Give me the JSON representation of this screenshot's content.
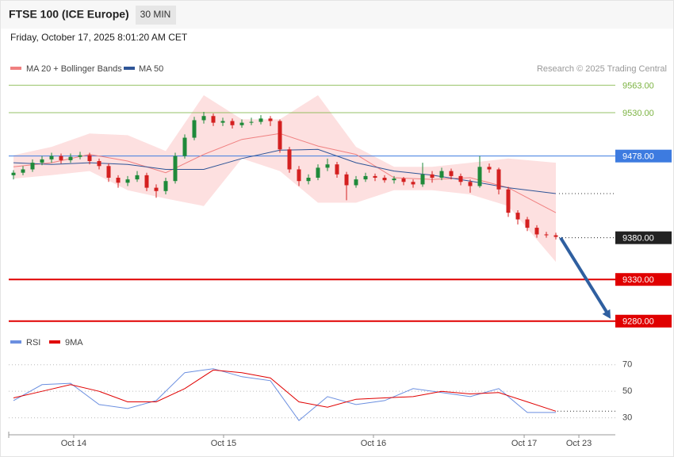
{
  "chart_data": {
    "type": "candlestick",
    "title": "FTSE 100 (ICE Europe)",
    "timeframe": "30 MIN",
    "subtitle": "Friday, October 17, 2025 8:01:20 AM CET",
    "copyright": "Research © 2025 Trading Central",
    "xlim": [
      -0.5,
      63.25
    ],
    "ylim": [
      9275,
      9570
    ],
    "xticks": [
      {
        "value": 6.33,
        "label": "Oct 14"
      },
      {
        "value": 22.08,
        "label": "Oct 15"
      },
      {
        "value": 37.83,
        "label": "Oct 16"
      },
      {
        "value": 53.67,
        "label": "Oct 17"
      },
      {
        "value": 59.42,
        "label": "Oct 23"
      }
    ],
    "up_color": "#1f8a3a",
    "down_color": "#d42020",
    "open": [
      9455,
      9458,
      9462,
      9470,
      9474,
      9478,
      9473,
      9477,
      9479,
      9472,
      9466,
      9452,
      9446,
      9450,
      9455,
      9440,
      9436,
      9448,
      9478,
      9500,
      9521,
      9526,
      9518,
      9520,
      9515,
      9518,
      9519,
      9523,
      9520,
      9486,
      9462,
      9448,
      9452,
      9464,
      9468,
      9456,
      9443,
      9450,
      9454,
      9452,
      9449,
      9451,
      9447,
      9444,
      9456,
      9452,
      9460,
      9454,
      9447,
      9442,
      9465,
      9462,
      9438,
      9410,
      9402,
      9392,
      9384,
      9383
    ],
    "high": [
      9461,
      9466,
      9474,
      9478,
      9482,
      9481,
      9481,
      9483,
      9482,
      9475,
      9469,
      9455,
      9454,
      9460,
      9458,
      9444,
      9452,
      9482,
      9504,
      9525,
      9531,
      9529,
      9524,
      9523,
      9522,
      9524,
      9527,
      9526,
      9522,
      9489,
      9466,
      9456,
      9468,
      9475,
      9471,
      9459,
      9454,
      9458,
      9457,
      9455,
      9454,
      9453,
      9450,
      9470,
      9460,
      9464,
      9463,
      9457,
      9450,
      9478,
      9469,
      9464,
      9441,
      9413,
      9405,
      9395,
      9387,
      9386
    ],
    "low": [
      9450,
      9455,
      9459,
      9467,
      9470,
      9469,
      9470,
      9474,
      9468,
      9462,
      9447,
      9440,
      9442,
      9447,
      9436,
      9428,
      9432,
      9445,
      9475,
      9497,
      9517,
      9514,
      9514,
      9511,
      9512,
      9515,
      9516,
      9514,
      9482,
      9458,
      9442,
      9444,
      9449,
      9460,
      9452,
      9425,
      9440,
      9447,
      9448,
      9446,
      9445,
      9443,
      9440,
      9441,
      9446,
      9449,
      9450,
      9443,
      9434,
      9440,
      9458,
      9432,
      9405,
      9396,
      9388,
      9380,
      9380,
      9378
    ],
    "close": [
      9458,
      9462,
      9470,
      9474,
      9478,
      9473,
      9477,
      9479,
      9472,
      9466,
      9452,
      9446,
      9450,
      9455,
      9440,
      9436,
      9448,
      9478,
      9500,
      9521,
      9526,
      9518,
      9520,
      9515,
      9518,
      9519,
      9523,
      9520,
      9486,
      9462,
      9448,
      9452,
      9464,
      9468,
      9456,
      9443,
      9450,
      9454,
      9452,
      9449,
      9451,
      9447,
      9444,
      9456,
      9452,
      9460,
      9454,
      9447,
      9442,
      9465,
      9462,
      9438,
      9410,
      9402,
      9392,
      9384,
      9383,
      9381
    ],
    "indicators": {
      "x": [
        0,
        4,
        8,
        12,
        16,
        20,
        24,
        28,
        32,
        36,
        40,
        44,
        48,
        52,
        57
      ],
      "bb_name": "MA 20 + Bollinger Bands",
      "bb_color": "#f08080",
      "band_color": "#fde0e0",
      "bb_upper": [
        9479,
        9489,
        9505,
        9503,
        9484,
        9551,
        9522,
        9522,
        9551,
        9489,
        9465,
        9465,
        9470,
        9475,
        9470
      ],
      "bb_lower": [
        9451,
        9455,
        9460,
        9437,
        9427,
        9418,
        9475,
        9460,
        9422,
        9422,
        9437,
        9437,
        9432,
        9418,
        9351
      ],
      "ma20": [
        9465,
        9470,
        9480,
        9472,
        9458,
        9480,
        9498,
        9505,
        9490,
        9480,
        9452,
        9450,
        9452,
        9440,
        9410
      ],
      "ma50_name": "MA 50",
      "ma50_color": "#2f5597",
      "ma50": [
        9470,
        9468,
        9470,
        9468,
        9462,
        9462,
        9475,
        9485,
        9486,
        9470,
        9460,
        9455,
        9448,
        9440,
        9433
      ]
    },
    "levels": [
      {
        "value": 9563,
        "label": "9563.00",
        "color": "#7cb342",
        "style": "thin"
      },
      {
        "value": 9530,
        "label": "9530.00",
        "color": "#7cb342",
        "style": "thin"
      },
      {
        "value": 9478,
        "label": "9478.00",
        "color": "#3d7be0",
        "style": "box"
      },
      {
        "value": 9380,
        "label": "9380.00",
        "color": "#222222",
        "style": "dotted"
      },
      {
        "value": 9330,
        "label": "9330.00",
        "color": "#e00000",
        "style": "thick"
      },
      {
        "value": 9280,
        "label": "9280.00",
        "color": "#e00000",
        "style": "thick"
      }
    ],
    "arrow": {
      "from": 9380,
      "to": 9280,
      "color": "#2f5fa0"
    },
    "rsi": {
      "x": [
        0,
        3,
        6,
        9,
        12,
        15,
        18,
        21,
        24,
        27,
        30,
        33,
        36,
        39,
        42,
        45,
        48,
        51,
        54,
        57
      ],
      "ylim": [
        22,
        77
      ],
      "yticks": [
        70,
        50,
        30
      ],
      "series": [
        {
          "name": "RSI",
          "color": "#6b8fe0",
          "values": [
            43,
            55,
            56,
            40,
            37,
            43,
            64,
            67,
            61,
            58,
            28,
            46,
            40,
            43,
            52,
            49,
            46,
            52,
            34,
            34
          ]
        },
        {
          "name": "9MA",
          "color": "#e00000",
          "values": [
            45,
            50,
            55,
            50,
            42,
            42,
            52,
            66,
            64,
            60,
            42,
            38,
            44,
            45,
            46,
            50,
            48,
            49,
            42,
            35
          ]
        }
      ]
    }
  }
}
